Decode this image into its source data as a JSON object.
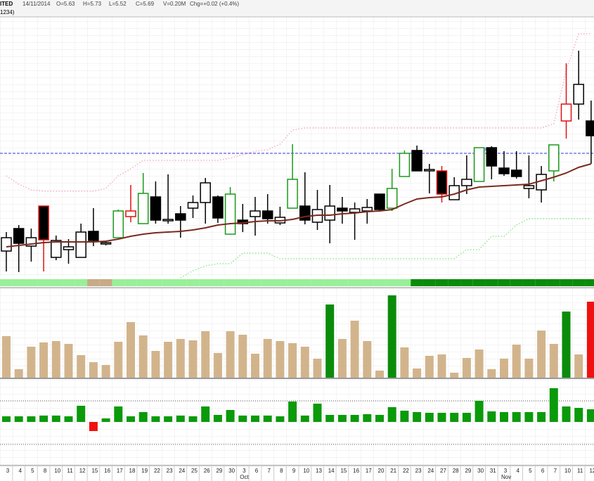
{
  "chart_data": {
    "type": "candlestick",
    "header": {
      "name": "ITED",
      "code": "1234)",
      "date": "14/11/2014",
      "open": "O=5.63",
      "high": "H=5.73",
      "low": "L=5.52",
      "close": "C=5.69",
      "volume": "V=0.20M",
      "change": "Chg=+0.02 (+0.4%)"
    },
    "categories": [
      "3",
      "4",
      "5",
      "8",
      "10",
      "11",
      "12",
      "15",
      "16",
      "17",
      "18",
      "19",
      "22",
      "23",
      "24",
      "25",
      "26",
      "29",
      "30",
      "3",
      "6",
      "7",
      "8",
      "9",
      "10",
      "13",
      "14",
      "15",
      "16",
      "17",
      "20",
      "21",
      "22",
      "23",
      "24",
      "27",
      "28",
      "29",
      "30",
      "31",
      "3",
      "4",
      "5",
      "6",
      "7",
      "10",
      "11",
      "12"
    ],
    "month_labels": [
      {
        "value": 19,
        "label": "Oct"
      },
      {
        "value": 40,
        "label": "Nov"
      }
    ],
    "ylim": [
      4.02,
      7.77
    ],
    "open": [
      4.4,
      4.72,
      4.47,
      5.04,
      4.31,
      4.42,
      4.31,
      4.68,
      4.5,
      4.59,
      4.89,
      4.79,
      5.17,
      4.83,
      4.93,
      5.01,
      5.09,
      5.17,
      4.64,
      4.84,
      4.89,
      4.97,
      4.8,
      5.01,
      5.04,
      4.81,
      4.84,
      5.01,
      4.95,
      4.97,
      5.21,
      5.01,
      5.46,
      5.83,
      5.54,
      5.54,
      5.13,
      5.33,
      5.39,
      5.87,
      5.58,
      5.55,
      5.29,
      5.27,
      5.54,
      6.25,
      6.49,
      6.25
    ],
    "high": [
      4.67,
      4.77,
      4.72,
      5.04,
      4.62,
      4.57,
      4.79,
      5.01,
      4.54,
      4.99,
      5.34,
      5.51,
      5.39,
      5.49,
      5.04,
      5.19,
      5.44,
      5.19,
      5.31,
      5.07,
      5.17,
      5.21,
      5.03,
      5.92,
      5.52,
      5.27,
      5.34,
      5.17,
      5.09,
      5.14,
      5.21,
      5.57,
      5.83,
      5.9,
      5.64,
      5.61,
      5.45,
      5.76,
      5.87,
      5.89,
      5.82,
      5.82,
      5.76,
      5.61,
      5.91,
      7.07,
      7.25,
      6.54
    ],
    "low": [
      4.11,
      4.1,
      4.25,
      4.11,
      4.27,
      4.22,
      4.31,
      4.47,
      4.48,
      4.59,
      4.81,
      4.79,
      4.79,
      4.79,
      4.59,
      4.87,
      4.79,
      4.8,
      4.64,
      4.67,
      4.62,
      4.79,
      4.77,
      5.01,
      4.78,
      4.7,
      4.51,
      4.79,
      4.56,
      4.79,
      4.97,
      4.97,
      5.46,
      5.54,
      5.22,
      5.09,
      5.13,
      5.21,
      5.39,
      5.42,
      5.47,
      5.43,
      5.15,
      5.09,
      5.39,
      6.0,
      6.27,
      5.64
    ],
    "close": [
      4.59,
      4.51,
      4.59,
      4.56,
      4.55,
      4.46,
      4.67,
      4.55,
      4.52,
      4.97,
      4.97,
      5.22,
      4.84,
      4.85,
      4.84,
      5.09,
      5.37,
      4.87,
      5.21,
      4.79,
      4.97,
      4.86,
      4.88,
      5.42,
      4.84,
      4.99,
      5.04,
      4.97,
      5.0,
      5.02,
      4.99,
      5.29,
      5.79,
      5.54,
      5.56,
      5.21,
      5.33,
      5.42,
      5.87,
      5.61,
      5.5,
      5.46,
      5.33,
      5.49,
      5.91,
      6.49,
      6.77,
      6.04
    ],
    "up_fill": "#ffffff",
    "down_fill": "#000000",
    "edge_colors": [
      "#000000",
      "#000000",
      "#000000",
      "#e01010",
      "#000000",
      "#000000",
      "#000000",
      "#000000",
      "#000000",
      "#1a9a1a",
      "#e01010",
      "#1a9a1a",
      "#000000",
      "#000000",
      "#000000",
      "#000000",
      "#000000",
      "#000000",
      "#1a9a1a",
      "#000000",
      "#000000",
      "#000000",
      "#000000",
      "#1a9a1a",
      "#000000",
      "#000000",
      "#000000",
      "#000000",
      "#000000",
      "#000000",
      "#000000",
      "#1a9a1a",
      "#1a9a1a",
      "#000000",
      "#000000",
      "#e01010",
      "#000000",
      "#000000",
      "#1a9a1a",
      "#000000",
      "#000000",
      "#000000",
      "#000000",
      "#000000",
      "#1a9a1a",
      "#e01010",
      "#000000",
      "#000000"
    ],
    "hline": 5.79,
    "hline_color": "#3030d0",
    "moving_average": {
      "color": "#7a2a20",
      "values": [
        4.46,
        4.48,
        4.5,
        4.52,
        4.53,
        4.53,
        4.53,
        4.53,
        4.54,
        4.57,
        4.61,
        4.64,
        4.66,
        4.67,
        4.68,
        4.7,
        4.73,
        4.77,
        4.79,
        4.8,
        4.82,
        4.83,
        4.83,
        4.85,
        4.89,
        4.91,
        4.91,
        4.93,
        4.94,
        4.96,
        4.97,
        4.99,
        5.07,
        5.14,
        5.16,
        5.17,
        5.21,
        5.27,
        5.31,
        5.32,
        5.33,
        5.34,
        5.35,
        5.4,
        5.45,
        5.51,
        5.59,
        5.64
      ]
    },
    "upper_band": {
      "color": "#f4b0bc",
      "values": [
        5.47,
        5.35,
        5.27,
        5.25,
        5.25,
        5.25,
        5.25,
        5.25,
        5.29,
        5.47,
        5.57,
        5.69,
        5.69,
        5.69,
        5.69,
        5.69,
        5.69,
        5.69,
        5.72,
        5.77,
        5.82,
        5.84,
        5.92,
        6.12,
        6.15,
        6.15,
        6.15,
        6.15,
        6.15,
        6.15,
        6.15,
        6.15,
        6.15,
        6.15,
        6.15,
        6.15,
        6.15,
        6.15,
        6.15,
        6.15,
        6.15,
        6.15,
        6.15,
        6.15,
        6.21,
        6.97,
        7.49,
        7.49
      ]
    },
    "lower_band": {
      "color": "#90e890",
      "values": [
        null,
        null,
        null,
        null,
        null,
        null,
        null,
        null,
        null,
        null,
        null,
        null,
        null,
        null,
        4.02,
        4.12,
        4.19,
        4.22,
        4.22,
        4.37,
        4.37,
        4.37,
        4.29,
        4.29,
        4.29,
        4.29,
        4.29,
        4.29,
        4.29,
        4.29,
        4.29,
        4.29,
        4.29,
        4.29,
        4.29,
        4.29,
        4.29,
        4.42,
        4.42,
        4.61,
        4.61,
        4.77,
        4.86,
        4.86,
        4.86,
        4.86,
        4.86,
        4.86
      ]
    },
    "strip_colors": [
      "#98f098",
      "#98f098",
      "#98f098",
      "#98f098",
      "#98f098",
      "#98f098",
      "#98f098",
      "#c8aa86",
      "#c8aa86",
      "#98f098",
      "#98f098",
      "#98f098",
      "#98f098",
      "#98f098",
      "#98f098",
      "#98f098",
      "#98f098",
      "#98f098",
      "#98f098",
      "#98f098",
      "#98f098",
      "#98f098",
      "#98f098",
      "#98f098",
      "#98f098",
      "#98f098",
      "#98f098",
      "#98f098",
      "#98f098",
      "#98f098",
      "#98f098",
      "#98f098",
      "#98f098",
      "#0a8c0a",
      "#0a8c0a",
      "#0a8c0a",
      "#0a8c0a",
      "#0a8c0a",
      "#0a8c0a",
      "#0a8c0a",
      "#0a8c0a",
      "#0a8c0a",
      "#0a8c0a",
      "#0a8c0a",
      "#0a8c0a",
      "#0a8c0a",
      "#0a8c0a",
      "#0a8c0a"
    ],
    "volume": {
      "ylim": [
        0,
        254
      ],
      "values": [
        118,
        24,
        88,
        100,
        104,
        96,
        64,
        44,
        36,
        102,
        158,
        120,
        76,
        102,
        110,
        106,
        132,
        70,
        132,
        122,
        68,
        110,
        104,
        98,
        88,
        54,
        208,
        110,
        162,
        104,
        20,
        234,
        86,
        26,
        62,
        66,
        14,
        56,
        80,
        24,
        54,
        94,
        54,
        134,
        96,
        188,
        66,
        216
      ],
      "colors": [
        "#d2b48c",
        "#d2b48c",
        "#d2b48c",
        "#d2b48c",
        "#d2b48c",
        "#d2b48c",
        "#d2b48c",
        "#d2b48c",
        "#d2b48c",
        "#d2b48c",
        "#d2b48c",
        "#d2b48c",
        "#d2b48c",
        "#d2b48c",
        "#d2b48c",
        "#d2b48c",
        "#d2b48c",
        "#d2b48c",
        "#d2b48c",
        "#d2b48c",
        "#d2b48c",
        "#d2b48c",
        "#d2b48c",
        "#d2b48c",
        "#d2b48c",
        "#d2b48c",
        "#0a8c0a",
        "#d2b48c",
        "#d2b48c",
        "#d2b48c",
        "#d2b48c",
        "#0a8c0a",
        "#d2b48c",
        "#d2b48c",
        "#d2b48c",
        "#d2b48c",
        "#d2b48c",
        "#d2b48c",
        "#d2b48c",
        "#d2b48c",
        "#d2b48c",
        "#d2b48c",
        "#d2b48c",
        "#d2b48c",
        "#d2b48c",
        "#0a8c0a",
        "#d2b48c",
        "#f01010"
      ]
    },
    "oscillator": {
      "ylim": [
        -62,
        60
      ],
      "levels": [
        30,
        -32
      ],
      "up_color": "#0a9a0a",
      "down_color": "#f01010",
      "values": [
        8,
        8,
        8,
        9,
        9,
        8,
        23,
        -13,
        5,
        22,
        8,
        14,
        8,
        8,
        9,
        8,
        22,
        10,
        17,
        9,
        9,
        9,
        8,
        29,
        9,
        26,
        10,
        10,
        10,
        11,
        10,
        21,
        16,
        14,
        13,
        13,
        13,
        13,
        30,
        15,
        14,
        14,
        14,
        14,
        48,
        22,
        20,
        18
      ]
    }
  }
}
